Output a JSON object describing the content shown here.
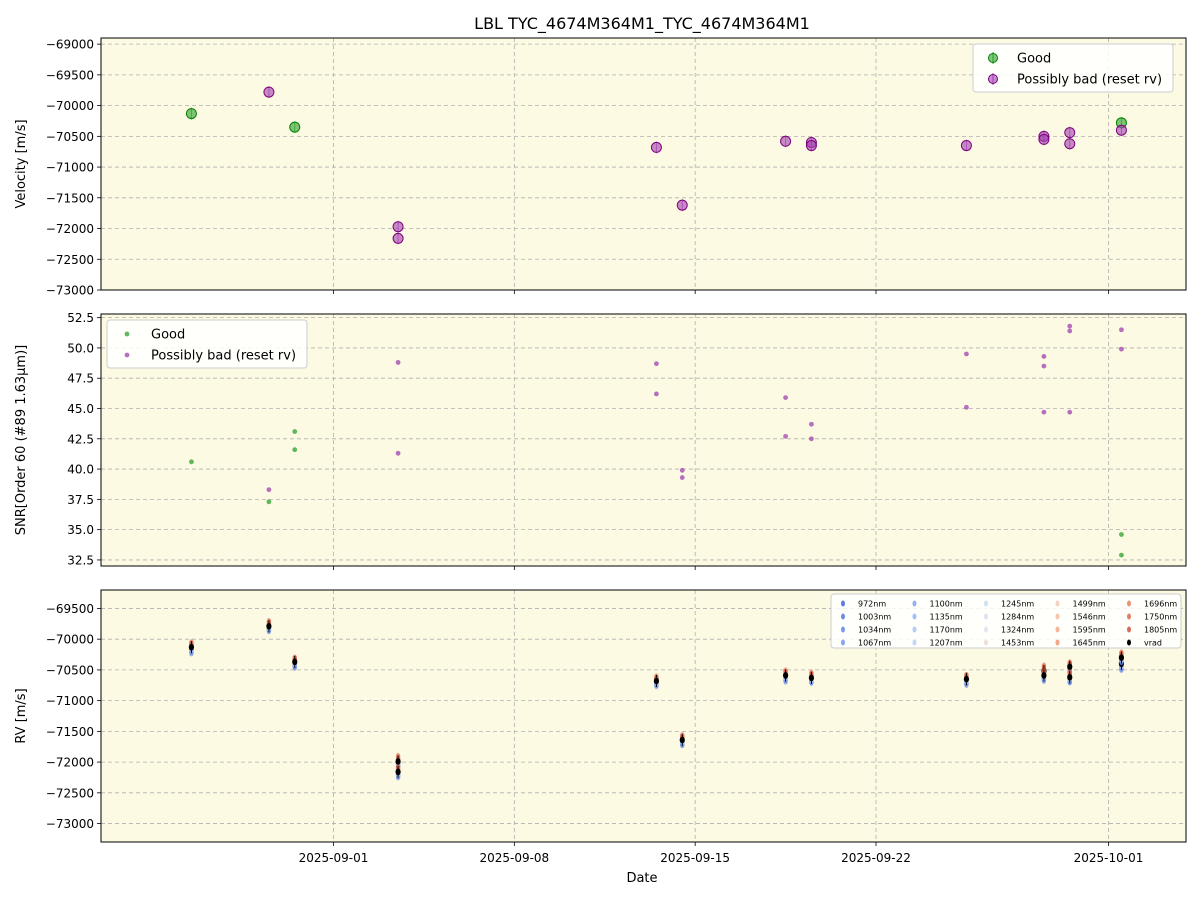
{
  "title": "LBL TYC_4674M364M1_TYC_4674M364M1",
  "xlabel": "Date",
  "x_ticks": [
    "2025-09-01",
    "2025-09-08",
    "2025-09-15",
    "2025-09-22",
    "2025-10-01"
  ],
  "colors": {
    "background": "#fcfae2",
    "good": "#2ca02c",
    "good_dark": "#008000",
    "bad": "#a040b0",
    "bad_dark": "#800080",
    "grid": "#b0b0b0"
  },
  "chart_data": [
    {
      "type": "scatter",
      "panel": "velocity",
      "ylabel": "Velocity [m/s]",
      "ylim": [
        -73000,
        -68900
      ],
      "y_ticks": [
        -69000,
        -69500,
        -70000,
        -70500,
        -71000,
        -71500,
        -72000,
        -72500,
        -73000
      ],
      "grid": true,
      "legend_position": "top-right",
      "series": [
        {
          "name": "Good",
          "x": [
            "2025-08-26",
            "2025-08-30",
            "2025-10-01"
          ],
          "y": [
            -70130,
            -70350,
            -70280
          ]
        },
        {
          "name": "Possibly bad (reset rv)",
          "x": [
            "2025-08-29",
            "2025-09-03",
            "2025-09-03",
            "2025-09-13",
            "2025-09-14",
            "2025-09-18",
            "2025-09-19",
            "2025-09-19",
            "2025-09-25",
            "2025-09-28",
            "2025-09-28",
            "2025-09-29",
            "2025-09-29",
            "2025-10-01"
          ],
          "y": [
            -69780,
            -71970,
            -72160,
            -70680,
            -71620,
            -70580,
            -70600,
            -70650,
            -70650,
            -70500,
            -70550,
            -70440,
            -70620,
            -70400
          ]
        }
      ]
    },
    {
      "type": "scatter",
      "panel": "snr",
      "ylabel": "SNR[Order 60 (#89 1.63μm)]",
      "ylim": [
        32,
        52.8
      ],
      "y_ticks": [
        32.5,
        35.0,
        37.5,
        40.0,
        42.5,
        45.0,
        47.5,
        50.0,
        52.5
      ],
      "grid": true,
      "legend_position": "top-left",
      "series": [
        {
          "name": "Good",
          "x": [
            "2025-08-26",
            "2025-08-29",
            "2025-08-30",
            "2025-08-30",
            "2025-10-01",
            "2025-10-01"
          ],
          "y": [
            40.6,
            37.3,
            43.1,
            41.6,
            34.6,
            32.9
          ]
        },
        {
          "name": "Possibly bad (reset rv)",
          "x": [
            "2025-08-29",
            "2025-09-03",
            "2025-09-03",
            "2025-09-13",
            "2025-09-13",
            "2025-09-14",
            "2025-09-14",
            "2025-09-18",
            "2025-09-18",
            "2025-09-19",
            "2025-09-19",
            "2025-09-25",
            "2025-09-25",
            "2025-09-28",
            "2025-09-28",
            "2025-09-28",
            "2025-09-29",
            "2025-09-29",
            "2025-09-29",
            "2025-10-01",
            "2025-10-01"
          ],
          "y": [
            38.3,
            48.8,
            41.3,
            48.7,
            46.2,
            39.9,
            39.3,
            45.9,
            42.7,
            43.7,
            42.5,
            49.5,
            45.1,
            49.3,
            48.5,
            44.7,
            51.8,
            51.4,
            44.7,
            51.5,
            49.9
          ]
        }
      ]
    },
    {
      "type": "scatter",
      "panel": "rv",
      "ylabel": "RV [m/s]",
      "ylim": [
        -73300,
        -69200
      ],
      "y_ticks": [
        -69500,
        -70000,
        -70500,
        -71000,
        -71500,
        -72000,
        -72500,
        -73000
      ],
      "grid": true,
      "legend_position": "top-right",
      "legend_entries": [
        "972nm",
        "1003nm",
        "1034nm",
        "1067nm",
        "1100nm",
        "1135nm",
        "1170nm",
        "1207nm",
        "1245nm",
        "1284nm",
        "1324nm",
        "1453nm",
        "1499nm",
        "1546nm",
        "1595nm",
        "1645nm",
        "1696nm",
        "1750nm",
        "1805nm",
        "vrad"
      ],
      "legend_colors": [
        "#3a5bd6",
        "#4a6ee0",
        "#5a80e8",
        "#6a90ee",
        "#7aa0f2",
        "#8ab0f5",
        "#9ec0f7",
        "#b2cdf8",
        "#c5d8f6",
        "#d2ddf2",
        "#dde0ec",
        "#ebd8cc",
        "#f0c8b0",
        "#f3b898",
        "#f2a47f",
        "#ee9068",
        "#e67856",
        "#dc6046",
        "#cc4838",
        "#000000"
      ],
      "vrad": {
        "x": [
          "2025-08-26",
          "2025-08-29",
          "2025-08-30",
          "2025-09-03",
          "2025-09-03",
          "2025-09-13",
          "2025-09-14",
          "2025-09-18",
          "2025-09-19",
          "2025-09-25",
          "2025-09-28",
          "2025-09-28",
          "2025-09-29",
          "2025-09-29",
          "2025-10-01",
          "2025-10-01"
        ],
        "y": [
          -70130,
          -69790,
          -70370,
          -71990,
          -72160,
          -70680,
          -71640,
          -70590,
          -70630,
          -70650,
          -70520,
          -70590,
          -70450,
          -70620,
          -70400,
          -70300
        ]
      }
    }
  ]
}
